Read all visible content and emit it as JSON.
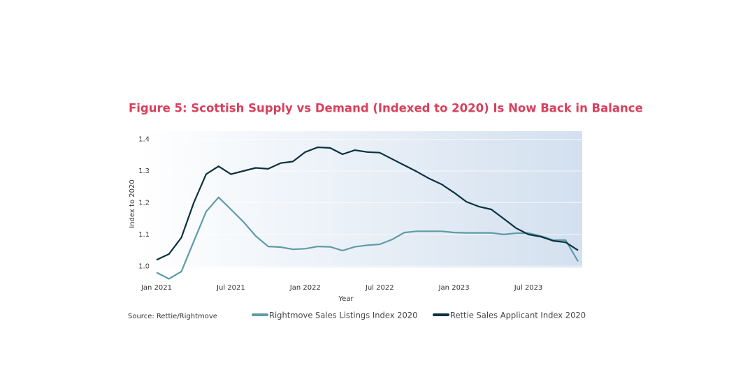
{
  "chart_data": {
    "type": "line",
    "title": "Figure 5: Scottish Supply vs Demand (Indexed to 2020) Is Now Back in Balance",
    "x_label": "Year",
    "y_label": "Index to 2020",
    "source": "Source: Rettie/Rightmove",
    "categories": [
      "Jan 2021",
      null,
      null,
      null,
      null,
      null,
      "Jul 2021",
      null,
      null,
      null,
      null,
      null,
      "Jan 2022",
      null,
      null,
      null,
      null,
      null,
      "Jul 2022",
      null,
      null,
      null,
      null,
      null,
      "Jan 2023",
      null,
      null,
      null,
      null,
      null,
      "Jul 2023",
      null,
      null,
      null,
      null
    ],
    "series": [
      {
        "name": "Rightmove Sales Listings Index 2020",
        "color": "#5f9ba6",
        "values": [
          0.98,
          0.96,
          0.983,
          1.078,
          1.172,
          1.217,
          1.179,
          1.14,
          1.095,
          1.062,
          1.06,
          1.053,
          1.055,
          1.062,
          1.061,
          1.049,
          1.061,
          1.066,
          1.069,
          1.084,
          1.106,
          1.11,
          1.11,
          1.11,
          1.106,
          1.105,
          1.105,
          1.105,
          1.1,
          1.104,
          1.104,
          1.095,
          1.082,
          1.082,
          1.015
        ]
      },
      {
        "name": "Rettie Sales Applicant Index 2020",
        "color": "#0b3140",
        "values": [
          1.02,
          1.038,
          1.09,
          1.2,
          1.29,
          1.315,
          1.29,
          1.3,
          1.31,
          1.307,
          1.325,
          1.33,
          1.36,
          1.375,
          1.373,
          1.353,
          1.366,
          1.36,
          1.358,
          1.338,
          1.318,
          1.298,
          1.276,
          1.258,
          1.232,
          1.203,
          1.188,
          1.179,
          1.15,
          1.12,
          1.1,
          1.093,
          1.08,
          1.075,
          1.05
        ]
      }
    ],
    "ylim": [
      0.95,
      1.43
    ],
    "yticks": [
      {
        "value": 1.0,
        "label": "1.0"
      },
      1.1,
      1.2,
      1.3,
      1.4
    ],
    "grid": true
  }
}
